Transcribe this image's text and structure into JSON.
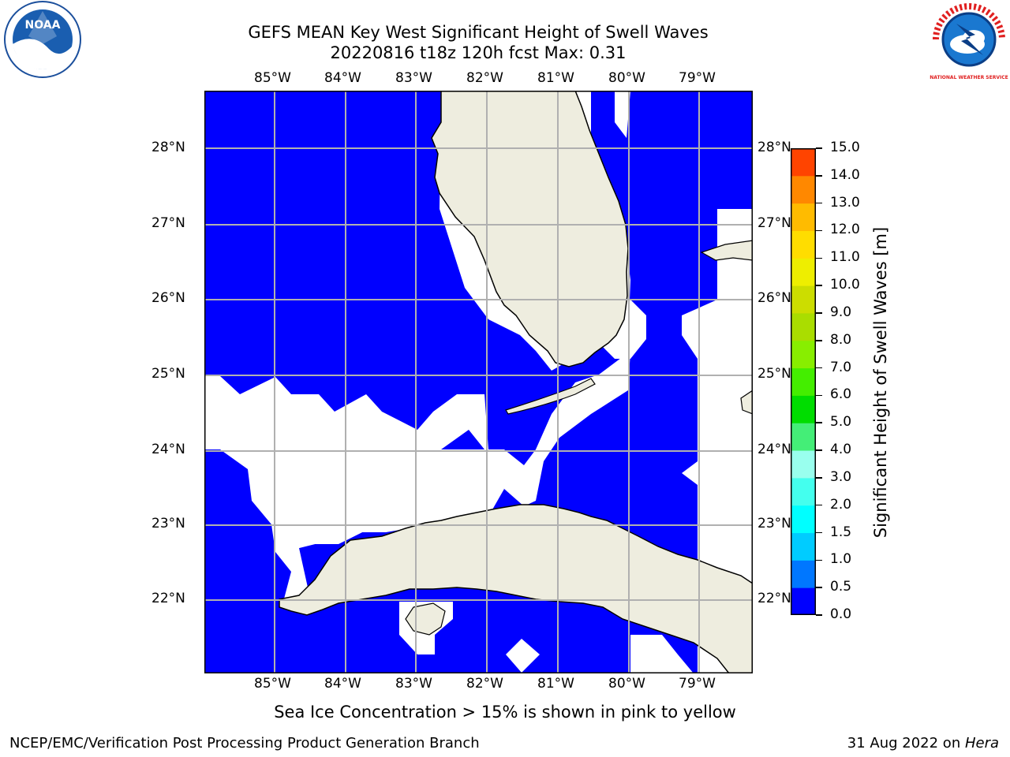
{
  "header": {
    "title_line1": "GEFS MEAN Key West Significant Height of Swell Waves",
    "title_line2": "20220816 t18z 120h fcst    Max: 0.31"
  },
  "logos": {
    "left": {
      "text": "NOAA",
      "icon": "noaa-logo-icon"
    },
    "right": {
      "text": "NATIONAL WEATHER SERVICE",
      "icon": "nws-logo-icon"
    }
  },
  "map": {
    "lon_labels": [
      "85°W",
      "84°W",
      "83°W",
      "82°W",
      "81°W",
      "80°W",
      "79°W"
    ],
    "lat_labels": [
      "28°N",
      "27°N",
      "26°N",
      "25°N",
      "24°N",
      "23°N",
      "22°N"
    ],
    "colors": {
      "water": "#0000ff",
      "land": "#eeeddf",
      "gridline": "#b0b0b0",
      "nodata": "#ffffff"
    }
  },
  "colorbar": {
    "label": "Significant Height of Swell Waves [m]",
    "tick_labels": [
      "0.0",
      "0.5",
      "1.0",
      "1.5",
      "2.0",
      "3.0",
      "4.0",
      "5.0",
      "6.0",
      "7.0",
      "8.0",
      "9.0",
      "10.0",
      "11.0",
      "12.0",
      "13.0",
      "14.0",
      "15.0"
    ],
    "colors": [
      "#0000ff",
      "#0077ff",
      "#00ccff",
      "#00ffff",
      "#44ffee",
      "#99ffee",
      "#44ee77",
      "#00dd00",
      "#44ee00",
      "#88ee00",
      "#aadd00",
      "#ccdd00",
      "#eeee00",
      "#ffdd00",
      "#ffbb00",
      "#ff8800",
      "#ff4400",
      "#ff0000"
    ]
  },
  "notes": {
    "sea_ice": "Sea Ice Concentration > 15% is shown in pink to yellow"
  },
  "footer": {
    "left": "NCEP/EMC/Verification Post Processing Product Generation Branch",
    "date": "31 Aug 2022 on ",
    "host": "Hera"
  }
}
